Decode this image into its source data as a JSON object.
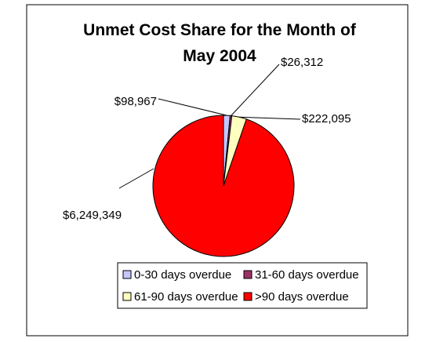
{
  "chart_data": {
    "type": "pie",
    "title": "Unmet Cost Share for the Month of May 2004",
    "categories": [
      "0-30 days overdue",
      "31-60 days overdue",
      "61-90 days overdue",
      ">90 days overdue"
    ],
    "values": [
      98967,
      26312,
      222095,
      6249349
    ],
    "value_labels": [
      "$98,967",
      "$26,312",
      "$222,095",
      "$6,249,349"
    ],
    "colors": [
      "#c6c6ff",
      "#993366",
      "#ffffc0",
      "#ff0000"
    ],
    "legend": "bottom"
  }
}
